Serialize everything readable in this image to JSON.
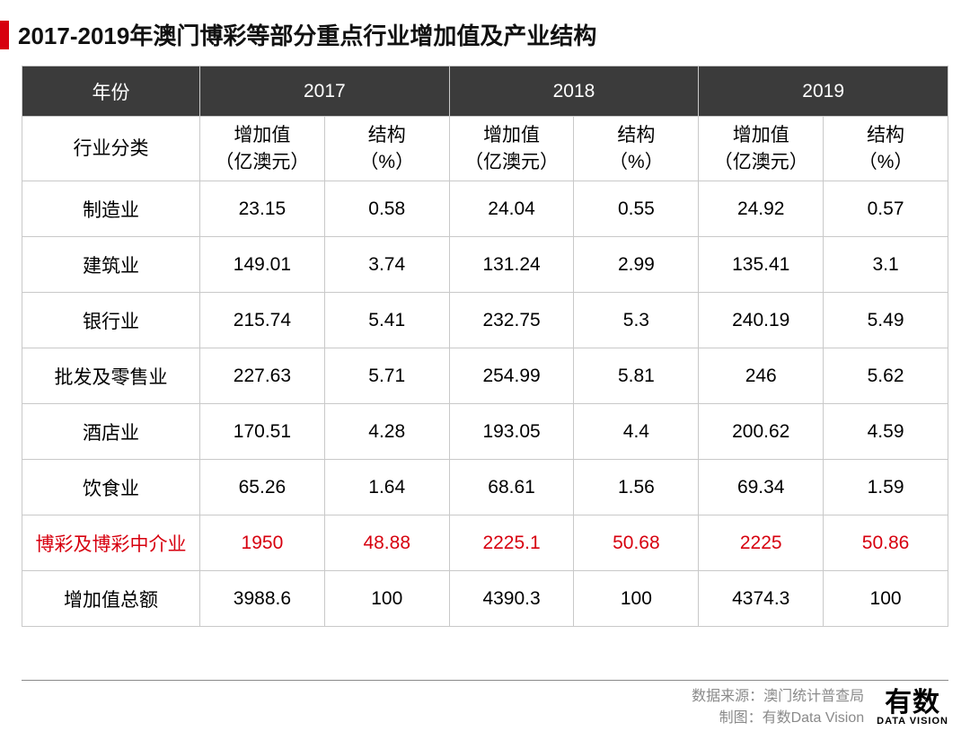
{
  "title": "2017-2019年澳门博彩等部分重点行业增加值及产业结构",
  "table": {
    "type": "table",
    "header_bg": "#3b3b3b",
    "header_fg": "#ffffff",
    "border_color": "#c9c9c9",
    "highlight_color": "#d7000f",
    "accent_color": "#d7000f",
    "year_label": "年份",
    "category_label": "行业分类",
    "years": [
      "2017",
      "2018",
      "2019"
    ],
    "sub_col_value": "增加值\n（亿澳元）",
    "sub_col_pct": "结构\n（%）",
    "categories": [
      "制造业",
      "建筑业",
      "银行业",
      "批发及零售业",
      "酒店业",
      "饮食业",
      "博彩及博彩中介业",
      "增加值总额"
    ],
    "highlight_row_index": 6,
    "rows": [
      [
        "23.15",
        "0.58",
        "24.04",
        "0.55",
        "24.92",
        "0.57"
      ],
      [
        "149.01",
        "3.74",
        "131.24",
        "2.99",
        "135.41",
        "3.1"
      ],
      [
        "215.74",
        "5.41",
        "232.75",
        "5.3",
        "240.19",
        "5.49"
      ],
      [
        "227.63",
        "5.71",
        "254.99",
        "5.81",
        "246",
        "5.62"
      ],
      [
        "170.51",
        "4.28",
        "193.05",
        "4.4",
        "200.62",
        "4.59"
      ],
      [
        "65.26",
        "1.64",
        "68.61",
        "1.56",
        "69.34",
        "1.59"
      ],
      [
        "1950",
        "48.88",
        "2225.1",
        "50.68",
        "2225",
        "50.86"
      ],
      [
        "3988.6",
        "100",
        "4390.3",
        "100",
        "4374.3",
        "100"
      ]
    ]
  },
  "footer": {
    "source_label": "数据来源：",
    "source_value": "澳门统计普查局",
    "chart_label": "制图：",
    "chart_value": "有数Data Vision",
    "brand_cn": "有数",
    "brand_en": "DATA VISION",
    "text_color": "#8a8a8a"
  }
}
